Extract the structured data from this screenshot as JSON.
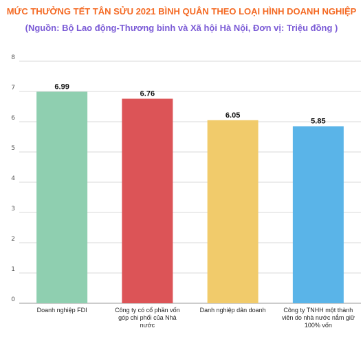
{
  "chart_data": {
    "type": "bar",
    "title": "MỨC THƯỞNG TẾT TÂN SỬU 2021  BÌNH QUÂN THEO LOẠI HÌNH DOANH NGHIỆP",
    "subtitle": "(Nguồn: Bộ Lao động-Thương binh và Xã hội Hà Nội, Đơn vị: Triệu đồng )",
    "categories": [
      [
        "Doanh nghiệp FDI"
      ],
      [
        "Công ty có cổ phần vốn",
        "góp chi phối của Nhà",
        "nước"
      ],
      [
        "Danh nghiệp dân doanh"
      ],
      [
        "Công ty TNHH một thành",
        "viên do nhà nước nắm giữ",
        "100% vốn"
      ]
    ],
    "values": [
      6.99,
      6.76,
      6.05,
      5.85
    ],
    "value_labels": [
      "6.99",
      "6.76",
      "6.05",
      "5.85"
    ],
    "bar_colors": [
      "#8fcfb0",
      "#dc5457",
      "#f1cb6b",
      "#5ab4e8"
    ],
    "y_ticks": [
      "0",
      "1",
      "2",
      "3",
      "4",
      "5",
      "6",
      "7",
      "8"
    ],
    "ylim": [
      0,
      8
    ],
    "grid": true,
    "legend": "none"
  }
}
